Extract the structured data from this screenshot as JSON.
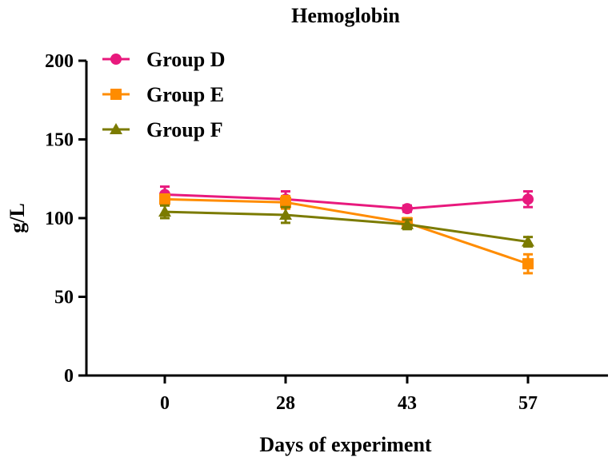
{
  "chart_data": {
    "type": "line",
    "title": "Hemoglobin",
    "xlabel": "Days of experiment",
    "ylabel": "g/L",
    "categories": [
      "0",
      "28",
      "43",
      "57"
    ],
    "ylim": [
      0,
      200
    ],
    "yticks": [
      0,
      50,
      100,
      150,
      200
    ],
    "legend_position": "top-left",
    "series": [
      {
        "name": "Group D",
        "color": "#e8197d",
        "marker": "circle",
        "values": [
          115,
          112,
          106,
          112
        ],
        "errors": [
          5,
          5,
          2,
          5
        ]
      },
      {
        "name": "Group E",
        "color": "#ff8c00",
        "marker": "square",
        "values": [
          112,
          110,
          97,
          71
        ],
        "errors": [
          3,
          4,
          3,
          6
        ]
      },
      {
        "name": "Group F",
        "color": "#7b7b00",
        "marker": "triangle",
        "values": [
          104,
          102,
          96,
          85
        ],
        "errors": [
          4,
          5,
          3,
          3
        ]
      }
    ]
  }
}
